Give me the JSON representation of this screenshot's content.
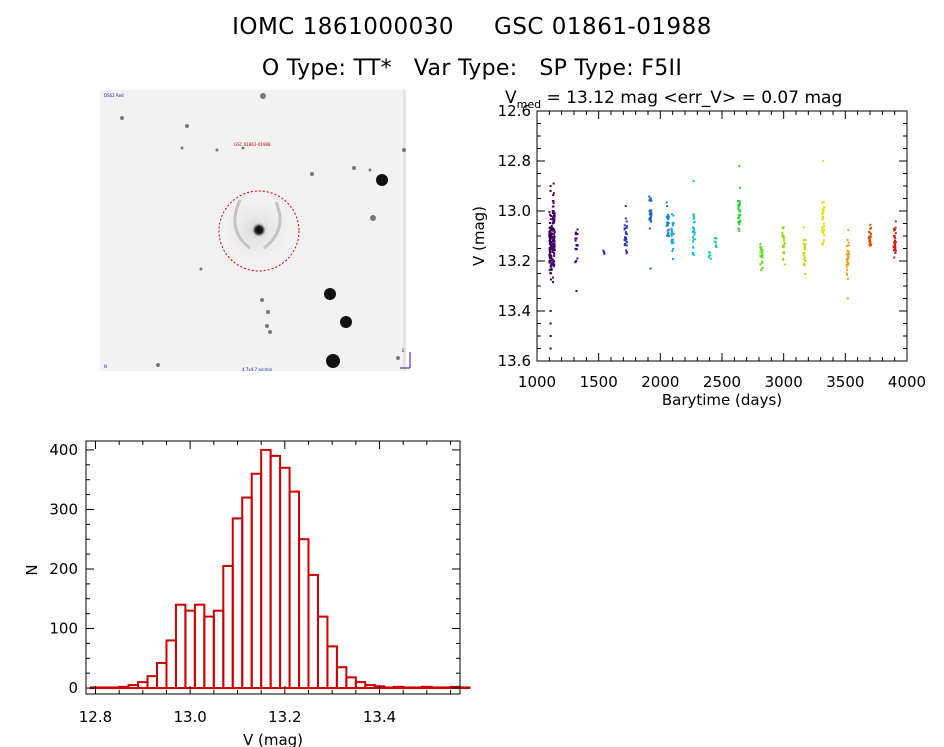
{
  "header": {
    "id_iomc": "IOMC 1861000030",
    "id_gsc": "GSC 01861-01988",
    "o_type": "O Type: TT*",
    "var_type": "Var Type:",
    "sp_type": "SP Type: F5II"
  },
  "sky_image": {
    "label_top_left": "DSS2 Red",
    "label_target": "GSC 01861-01988",
    "label_bottom": "4.7x4.7 arcmin",
    "label_bottom_left": "N",
    "label_bottom_right": "E"
  },
  "colors": {
    "histogram": "#cc0000",
    "axis": "#000000",
    "circle": "#d00000"
  },
  "chart_data": [
    {
      "type": "scatter",
      "name": "light-curve",
      "title_prefix": "V",
      "title_sub": "med",
      "title_rest": " = 13.12 mag <err_V> = 0.07 mag",
      "xlabel": "Barytime (days)",
      "ylabel": "V (mag)",
      "xlim": [
        1000,
        4000
      ],
      "ylim": [
        12.6,
        13.6
      ],
      "y_inverted": true,
      "x_ticks": [
        1000,
        1500,
        2000,
        2500,
        3000,
        3500,
        4000
      ],
      "y_ticks": [
        12.6,
        12.8,
        13.0,
        13.2,
        13.4,
        13.6
      ],
      "x_tick_labels": [
        "1000",
        "1500",
        "2000",
        "2500",
        "3000",
        "3500",
        "4000"
      ],
      "y_tick_labels": [
        "12.6",
        "12.8",
        "13.0",
        "13.2",
        "13.4",
        "13.6"
      ],
      "series": [
        {
          "x": 1110,
          "ymin": 12.97,
          "ymax": 13.33,
          "color": "#3a0050",
          "n": 90,
          "outliers": [
            12.9,
            12.92,
            13.4,
            13.45,
            13.5,
            13.55
          ]
        },
        {
          "x": 1135,
          "ymin": 12.88,
          "ymax": 13.33,
          "color": "#4b0070",
          "n": 90,
          "outliers": [
            12.89
          ]
        },
        {
          "x": 1320,
          "ymin": 13.03,
          "ymax": 13.25,
          "color": "#4b007e",
          "n": 20,
          "outliers": [
            13.32
          ]
        },
        {
          "x": 1540,
          "ymin": 13.15,
          "ymax": 13.18,
          "color": "#3a1090",
          "n": 3,
          "outliers": []
        },
        {
          "x": 1720,
          "ymin": 13.0,
          "ymax": 13.2,
          "color": "#3030b0",
          "n": 25,
          "outliers": [
            12.98
          ]
        },
        {
          "x": 1920,
          "ymin": 12.92,
          "ymax": 13.1,
          "color": "#1a5fd0",
          "n": 25,
          "outliers": [
            13.23
          ]
        },
        {
          "x": 2060,
          "ymin": 12.95,
          "ymax": 13.15,
          "color": "#1880d8",
          "n": 25,
          "outliers": []
        },
        {
          "x": 2100,
          "ymin": 12.98,
          "ymax": 13.22,
          "color": "#12a8e0",
          "n": 25,
          "outliers": []
        },
        {
          "x": 2270,
          "ymin": 12.98,
          "ymax": 13.22,
          "color": "#10c0d0",
          "n": 25,
          "outliers": [
            12.88
          ]
        },
        {
          "x": 2400,
          "ymin": 13.15,
          "ymax": 13.22,
          "color": "#10d0b0",
          "n": 6,
          "outliers": []
        },
        {
          "x": 2450,
          "ymin": 13.08,
          "ymax": 13.18,
          "color": "#20d080",
          "n": 8,
          "outliers": []
        },
        {
          "x": 2640,
          "ymin": 12.87,
          "ymax": 13.14,
          "color": "#30d040",
          "n": 30,
          "outliers": [
            12.82
          ]
        },
        {
          "x": 2820,
          "ymin": 13.08,
          "ymax": 13.27,
          "color": "#60e020",
          "n": 25,
          "outliers": []
        },
        {
          "x": 3000,
          "ymin": 13.01,
          "ymax": 13.26,
          "color": "#90e010",
          "n": 25,
          "outliers": []
        },
        {
          "x": 3170,
          "ymin": 13.05,
          "ymax": 13.3,
          "color": "#b0e010",
          "n": 25,
          "outliers": []
        },
        {
          "x": 3320,
          "ymin": 12.88,
          "ymax": 13.2,
          "color": "#e0e010",
          "n": 30,
          "outliers": [
            12.8
          ]
        },
        {
          "x": 3520,
          "ymin": 13.06,
          "ymax": 13.3,
          "color": "#f0a020",
          "n": 30,
          "outliers": [
            13.35
          ]
        },
        {
          "x": 3700,
          "ymin": 13.01,
          "ymax": 13.2,
          "color": "#e05010",
          "n": 25,
          "outliers": []
        },
        {
          "x": 3900,
          "ymin": 13.03,
          "ymax": 13.22,
          "color": "#d02010",
          "n": 30,
          "outliers": []
        }
      ]
    },
    {
      "type": "bar",
      "name": "histogram",
      "xlabel": "V (mag)",
      "ylabel": "N",
      "xlim": [
        12.78,
        13.57
      ],
      "ylim": [
        -10,
        415
      ],
      "x_ticks": [
        12.8,
        13.0,
        13.2,
        13.4
      ],
      "x_tick_labels": [
        "12.8",
        "13.0",
        "13.2",
        "13.4"
      ],
      "y_ticks": [
        0,
        100,
        200,
        300,
        400
      ],
      "y_tick_labels": [
        "0",
        "100",
        "200",
        "300",
        "400"
      ],
      "bin_start": 12.79,
      "bin_width": 0.02,
      "values": [
        1,
        1,
        1,
        2,
        5,
        10,
        20,
        42,
        80,
        140,
        130,
        140,
        120,
        130,
        205,
        285,
        320,
        360,
        400,
        390,
        370,
        330,
        250,
        190,
        120,
        70,
        35,
        18,
        10,
        5,
        3,
        1,
        2,
        1,
        1,
        2,
        1,
        1,
        2,
        1
      ]
    }
  ]
}
